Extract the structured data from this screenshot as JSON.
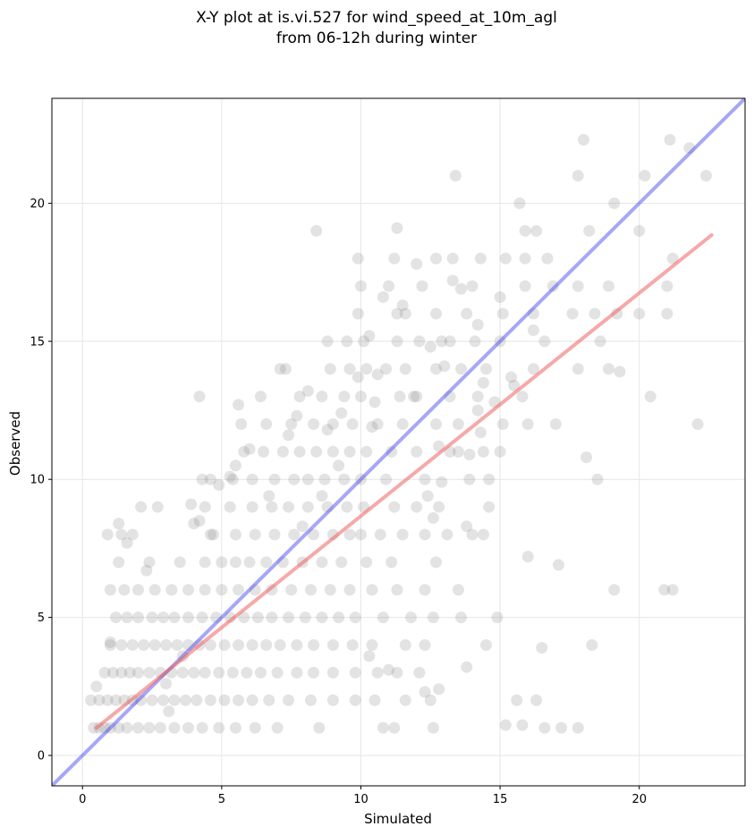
{
  "chart_data": {
    "type": "scatter",
    "title": [
      "X-Y plot at is.vi.527 for wind_speed_at_10m_agl",
      "from 06-12h during winter"
    ],
    "xlabel": "Simulated",
    "ylabel": "Observed",
    "xlim": [
      -1.1,
      23.8
    ],
    "ylim": [
      -1.1,
      23.8
    ],
    "x_ticks": [
      "0",
      "5",
      "10",
      "15",
      "20"
    ],
    "y_ticks": [
      "0",
      "5",
      "10",
      "15",
      "20"
    ],
    "grid": true,
    "legend": "none",
    "colors": {
      "points": "#7f7f7f",
      "identity_line": "#3b3bf0",
      "fit_line": "#f06060"
    },
    "identity_line": {
      "x": [
        -1.1,
        23.8
      ],
      "y": [
        -1.1,
        23.8
      ]
    },
    "fit_line": {
      "x": [
        0.5,
        22.6
      ],
      "y": [
        1.0,
        18.85
      ]
    },
    "points": [
      [
        0.4,
        1
      ],
      [
        0.6,
        1
      ],
      [
        0.8,
        1
      ],
      [
        1.0,
        1
      ],
      [
        1.3,
        1
      ],
      [
        1.6,
        1
      ],
      [
        2.0,
        1
      ],
      [
        2.4,
        1
      ],
      [
        2.8,
        1
      ],
      [
        3.3,
        1
      ],
      [
        3.8,
        1
      ],
      [
        4.3,
        1
      ],
      [
        4.9,
        1
      ],
      [
        5.5,
        1
      ],
      [
        6.2,
        1
      ],
      [
        7.0,
        1
      ],
      [
        8.5,
        1
      ],
      [
        10.8,
        1
      ],
      [
        11.2,
        1
      ],
      [
        12.6,
        1
      ],
      [
        16.6,
        1
      ],
      [
        17.8,
        1
      ],
      [
        0.3,
        2
      ],
      [
        0.6,
        2
      ],
      [
        0.9,
        2
      ],
      [
        1.2,
        2
      ],
      [
        1.5,
        2
      ],
      [
        1.8,
        2
      ],
      [
        2.1,
        2
      ],
      [
        2.5,
        2
      ],
      [
        2.9,
        2
      ],
      [
        3.3,
        2
      ],
      [
        3.7,
        2
      ],
      [
        4.1,
        2
      ],
      [
        4.6,
        2
      ],
      [
        5.1,
        2
      ],
      [
        5.6,
        2
      ],
      [
        6.1,
        2
      ],
      [
        6.7,
        2
      ],
      [
        7.4,
        2
      ],
      [
        8.2,
        2
      ],
      [
        9.0,
        2
      ],
      [
        9.8,
        2
      ],
      [
        10.5,
        2
      ],
      [
        11.6,
        2
      ],
      [
        12.5,
        2
      ],
      [
        15.6,
        2
      ],
      [
        16.3,
        2
      ],
      [
        0.8,
        3
      ],
      [
        1.1,
        3
      ],
      [
        1.4,
        3
      ],
      [
        1.7,
        3
      ],
      [
        2.0,
        3
      ],
      [
        2.4,
        3
      ],
      [
        2.8,
        3
      ],
      [
        3.2,
        3
      ],
      [
        3.6,
        3
      ],
      [
        4.0,
        3
      ],
      [
        4.4,
        3
      ],
      [
        4.9,
        3
      ],
      [
        5.4,
        3
      ],
      [
        5.9,
        3
      ],
      [
        6.4,
        3
      ],
      [
        7.0,
        3
      ],
      [
        7.7,
        3
      ],
      [
        8.3,
        3
      ],
      [
        9.0,
        3
      ],
      [
        9.8,
        3
      ],
      [
        10.6,
        3
      ],
      [
        11.3,
        3
      ],
      [
        12.1,
        3
      ],
      [
        1.0,
        4
      ],
      [
        1.4,
        4
      ],
      [
        1.8,
        4
      ],
      [
        2.2,
        4
      ],
      [
        2.6,
        4
      ],
      [
        3.0,
        4
      ],
      [
        3.4,
        4
      ],
      [
        3.8,
        4
      ],
      [
        4.2,
        4
      ],
      [
        4.6,
        4
      ],
      [
        5.1,
        4
      ],
      [
        5.6,
        4
      ],
      [
        6.1,
        4
      ],
      [
        6.6,
        4
      ],
      [
        7.1,
        4
      ],
      [
        7.7,
        4
      ],
      [
        8.3,
        4
      ],
      [
        9.0,
        4
      ],
      [
        9.7,
        4
      ],
      [
        10.4,
        4
      ],
      [
        11.6,
        4
      ],
      [
        12.3,
        4
      ],
      [
        14.5,
        4
      ],
      [
        16.5,
        3.9
      ],
      [
        18.3,
        4
      ],
      [
        1.2,
        5
      ],
      [
        1.6,
        5
      ],
      [
        2.0,
        5
      ],
      [
        2.5,
        5
      ],
      [
        2.9,
        5
      ],
      [
        3.3,
        5
      ],
      [
        3.8,
        5
      ],
      [
        4.3,
        5
      ],
      [
        4.8,
        5
      ],
      [
        5.3,
        5
      ],
      [
        5.8,
        5
      ],
      [
        6.3,
        5
      ],
      [
        6.8,
        5
      ],
      [
        7.4,
        5
      ],
      [
        8.0,
        5
      ],
      [
        8.6,
        5
      ],
      [
        9.2,
        5
      ],
      [
        9.8,
        5
      ],
      [
        10.8,
        5
      ],
      [
        11.8,
        5
      ],
      [
        12.6,
        5
      ],
      [
        13.6,
        5
      ],
      [
        14.9,
        5
      ],
      [
        1.0,
        6
      ],
      [
        1.5,
        6
      ],
      [
        2.0,
        6
      ],
      [
        2.6,
        6
      ],
      [
        3.2,
        6
      ],
      [
        3.8,
        6
      ],
      [
        4.4,
        6
      ],
      [
        5.0,
        6
      ],
      [
        5.6,
        6
      ],
      [
        6.2,
        6
      ],
      [
        6.8,
        6
      ],
      [
        7.5,
        6
      ],
      [
        8.2,
        6
      ],
      [
        8.9,
        6
      ],
      [
        9.6,
        6
      ],
      [
        10.4,
        6
      ],
      [
        11.3,
        6
      ],
      [
        12.3,
        6
      ],
      [
        13.5,
        6
      ],
      [
        19.1,
        6
      ],
      [
        20.9,
        6
      ],
      [
        21.2,
        6
      ],
      [
        1.3,
        7
      ],
      [
        2.4,
        7
      ],
      [
        3.5,
        7
      ],
      [
        4.4,
        7
      ],
      [
        5.0,
        7
      ],
      [
        5.5,
        7
      ],
      [
        6.0,
        7
      ],
      [
        6.6,
        7
      ],
      [
        7.2,
        7
      ],
      [
        7.9,
        7
      ],
      [
        8.6,
        7
      ],
      [
        9.3,
        7
      ],
      [
        10.2,
        7
      ],
      [
        11.1,
        7
      ],
      [
        12.7,
        7
      ],
      [
        0.9,
        8
      ],
      [
        1.8,
        8
      ],
      [
        4.7,
        8
      ],
      [
        5.5,
        8
      ],
      [
        6.2,
        8
      ],
      [
        6.9,
        8
      ],
      [
        7.6,
        8
      ],
      [
        8.3,
        8
      ],
      [
        9.0,
        8
      ],
      [
        9.6,
        8
      ],
      [
        10.0,
        8
      ],
      [
        10.7,
        8
      ],
      [
        11.5,
        8
      ],
      [
        12.3,
        8
      ],
      [
        13.1,
        8
      ],
      [
        14.0,
        8
      ],
      [
        14.4,
        8
      ],
      [
        2.1,
        9
      ],
      [
        2.7,
        9
      ],
      [
        4.4,
        9
      ],
      [
        5.3,
        9
      ],
      [
        6.1,
        9
      ],
      [
        6.8,
        9
      ],
      [
        7.4,
        9
      ],
      [
        8.1,
        9
      ],
      [
        8.8,
        9
      ],
      [
        9.5,
        9
      ],
      [
        10.1,
        9
      ],
      [
        11.2,
        9
      ],
      [
        12.0,
        9
      ],
      [
        12.8,
        9
      ],
      [
        14.6,
        9
      ],
      [
        4.3,
        10
      ],
      [
        4.6,
        10
      ],
      [
        5.4,
        10
      ],
      [
        6.1,
        10
      ],
      [
        6.9,
        10
      ],
      [
        7.6,
        10
      ],
      [
        8.1,
        10
      ],
      [
        8.7,
        10
      ],
      [
        9.4,
        10
      ],
      [
        10.0,
        10
      ],
      [
        10.9,
        10
      ],
      [
        12.3,
        10
      ],
      [
        13.9,
        10
      ],
      [
        14.6,
        10
      ],
      [
        18.5,
        10
      ],
      [
        5.8,
        11
      ],
      [
        6.5,
        11
      ],
      [
        7.2,
        11
      ],
      [
        7.8,
        11
      ],
      [
        8.4,
        11
      ],
      [
        9.0,
        11
      ],
      [
        9.6,
        11
      ],
      [
        10.2,
        11
      ],
      [
        11.1,
        11
      ],
      [
        12.0,
        11
      ],
      [
        13.2,
        11
      ],
      [
        14.4,
        11
      ],
      [
        15.0,
        11
      ],
      [
        5.7,
        12
      ],
      [
        6.6,
        12
      ],
      [
        7.5,
        12
      ],
      [
        8.3,
        12
      ],
      [
        9.0,
        12
      ],
      [
        9.7,
        12
      ],
      [
        10.6,
        12
      ],
      [
        11.5,
        12
      ],
      [
        12.7,
        12
      ],
      [
        13.5,
        12
      ],
      [
        15.1,
        12
      ],
      [
        16.0,
        12
      ],
      [
        17.0,
        12
      ],
      [
        22.1,
        12
      ],
      [
        4.2,
        13
      ],
      [
        6.4,
        13
      ],
      [
        7.8,
        13
      ],
      [
        8.6,
        13
      ],
      [
        9.4,
        13
      ],
      [
        10.0,
        13
      ],
      [
        11.4,
        13
      ],
      [
        12.0,
        13
      ],
      [
        13.2,
        13
      ],
      [
        14.2,
        13
      ],
      [
        15.8,
        13
      ],
      [
        20.4,
        13
      ],
      [
        7.1,
        14
      ],
      [
        8.9,
        14
      ],
      [
        9.6,
        14
      ],
      [
        10.2,
        14
      ],
      [
        10.9,
        14
      ],
      [
        11.6,
        14
      ],
      [
        12.7,
        14
      ],
      [
        13.6,
        14
      ],
      [
        14.5,
        14
      ],
      [
        16.2,
        14
      ],
      [
        17.8,
        14
      ],
      [
        18.9,
        14
      ],
      [
        19.3,
        13.9
      ],
      [
        8.8,
        15
      ],
      [
        9.5,
        15
      ],
      [
        10.1,
        15
      ],
      [
        11.3,
        15
      ],
      [
        12.1,
        15
      ],
      [
        13.2,
        15
      ],
      [
        14.1,
        15
      ],
      [
        15.0,
        15
      ],
      [
        16.6,
        15
      ],
      [
        18.6,
        15
      ],
      [
        9.9,
        16
      ],
      [
        11.3,
        16
      ],
      [
        12.7,
        16
      ],
      [
        13.8,
        16
      ],
      [
        15.1,
        16
      ],
      [
        16.2,
        16
      ],
      [
        17.6,
        16
      ],
      [
        18.4,
        16
      ],
      [
        19.2,
        16
      ],
      [
        20.0,
        16
      ],
      [
        21.0,
        16
      ],
      [
        10.0,
        17
      ],
      [
        11.0,
        17
      ],
      [
        12.2,
        17
      ],
      [
        14.0,
        17
      ],
      [
        15.9,
        17
      ],
      [
        16.9,
        17
      ],
      [
        17.8,
        17
      ],
      [
        18.9,
        17
      ],
      [
        21.0,
        17
      ],
      [
        9.9,
        18
      ],
      [
        11.2,
        18
      ],
      [
        12.7,
        18
      ],
      [
        13.3,
        18
      ],
      [
        14.3,
        18
      ],
      [
        15.2,
        18
      ],
      [
        15.9,
        18
      ],
      [
        16.7,
        18
      ],
      [
        21.2,
        18
      ],
      [
        8.4,
        19
      ],
      [
        11.3,
        19.1
      ],
      [
        15.9,
        19
      ],
      [
        16.3,
        19
      ],
      [
        18.2,
        19
      ],
      [
        20.0,
        19
      ],
      [
        15.7,
        20
      ],
      [
        19.1,
        20
      ],
      [
        13.4,
        21
      ],
      [
        17.8,
        21
      ],
      [
        20.2,
        21
      ],
      [
        22.4,
        21
      ],
      [
        18.0,
        22.3
      ],
      [
        21.1,
        22.3
      ],
      [
        21.8,
        22
      ],
      [
        12.0,
        17.8
      ],
      [
        11.5,
        16.3
      ],
      [
        13.0,
        14.1
      ],
      [
        11.9,
        13.0
      ],
      [
        9.3,
        12.4
      ],
      [
        10.4,
        11.9
      ],
      [
        14.2,
        12.5
      ],
      [
        13.9,
        10.9
      ],
      [
        12.9,
        9.9
      ],
      [
        12.4,
        9.4
      ],
      [
        13.8,
        8.3
      ],
      [
        12.6,
        8.6
      ],
      [
        16.0,
        7.2
      ],
      [
        17.1,
        6.9
      ],
      [
        10.3,
        3.6
      ],
      [
        11.0,
        3.1
      ],
      [
        13.8,
        3.2
      ],
      [
        12.3,
        2.3
      ],
      [
        12.8,
        2.4
      ],
      [
        15.2,
        1.1
      ],
      [
        15.8,
        1.1
      ],
      [
        17.2,
        1
      ],
      [
        18.1,
        10.8
      ],
      [
        0.5,
        2.5
      ],
      [
        1.0,
        4.1
      ],
      [
        1.3,
        8.4
      ],
      [
        1.4,
        8.0
      ],
      [
        1.6,
        7.7
      ],
      [
        2.3,
        6.7
      ],
      [
        3.1,
        1.6
      ],
      [
        3.0,
        2.6
      ],
      [
        3.6,
        3.6
      ],
      [
        4.0,
        8.4
      ],
      [
        4.2,
        8.5
      ],
      [
        3.9,
        9.1
      ],
      [
        4.6,
        8.0
      ],
      [
        4.9,
        9.8
      ],
      [
        5.3,
        10.1
      ],
      [
        5.5,
        10.5
      ],
      [
        5.6,
        12.7
      ],
      [
        6.0,
        11.1
      ],
      [
        7.3,
        14
      ],
      [
        7.7,
        12.3
      ],
      [
        8.1,
        13.2
      ],
      [
        7.4,
        11.6
      ],
      [
        6.7,
        9.4
      ],
      [
        7.9,
        8.3
      ],
      [
        8.6,
        9.4
      ],
      [
        8.8,
        11.8
      ],
      [
        9.2,
        10.5
      ],
      [
        9.9,
        13.7
      ],
      [
        10.3,
        15.2
      ],
      [
        10.6,
        13.8
      ],
      [
        10.8,
        16.6
      ],
      [
        10.5,
        12.8
      ],
      [
        11.6,
        16.0
      ],
      [
        12.5,
        14.8
      ],
      [
        12.9,
        15.0
      ],
      [
        13.3,
        17.2
      ],
      [
        13.6,
        16.9
      ],
      [
        14.2,
        15.6
      ],
      [
        15.0,
        16.6
      ],
      [
        14.4,
        13.5
      ],
      [
        14.8,
        12.8
      ],
      [
        15.5,
        13.4
      ],
      [
        16.2,
        15.4
      ],
      [
        15.4,
        13.7
      ],
      [
        14.3,
        11.7
      ],
      [
        13.5,
        11.0
      ],
      [
        12.8,
        11.2
      ]
    ]
  }
}
